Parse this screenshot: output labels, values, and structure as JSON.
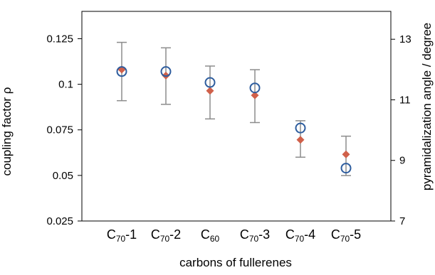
{
  "chart_data": {
    "type": "scatter",
    "xlabel": "carbons of fullerenes",
    "ylabel_left": "coupling factor ρ",
    "ylabel_right": "pyramidalization angle / degree",
    "categories": [
      {
        "base": "C",
        "sub": "70",
        "suffix": "-1"
      },
      {
        "base": "C",
        "sub": "70",
        "suffix": "-2"
      },
      {
        "base": "C",
        "sub": "60",
        "suffix": ""
      },
      {
        "base": "C",
        "sub": "70",
        "suffix": "-3"
      },
      {
        "base": "C",
        "sub": "70",
        "suffix": "-4"
      },
      {
        "base": "C",
        "sub": "70",
        "suffix": "-5"
      }
    ],
    "ylim_left": [
      0.025,
      0.14
    ],
    "yticks_left": [
      "0.025",
      "0.05",
      "0.075",
      "0.1",
      "0.125"
    ],
    "ylim_right": [
      7,
      13.92
    ],
    "yticks_right": [
      "7",
      "9",
      "11",
      "13"
    ],
    "series": [
      {
        "axis": "left",
        "marker": "circle",
        "color": "#2e5d9e",
        "values": [
          0.107,
          0.107,
          0.101,
          0.098,
          0.076,
          0.054
        ],
        "error_low": [
          0.091,
          0.089,
          0.081,
          0.079,
          0.06,
          null
        ],
        "error_high": [
          0.123,
          0.12,
          0.11,
          0.108,
          0.08,
          null
        ]
      },
      {
        "axis": "right",
        "marker": "diamond",
        "color": "#d0604a",
        "values": [
          12.0,
          11.8,
          11.3,
          11.15,
          9.68,
          9.2
        ],
        "error_low": [
          null,
          null,
          null,
          null,
          null,
          8.5
        ],
        "error_high": [
          null,
          null,
          null,
          null,
          null,
          9.8
        ]
      }
    ],
    "error_bar_color": "#8c8c8c",
    "grid": false
  }
}
